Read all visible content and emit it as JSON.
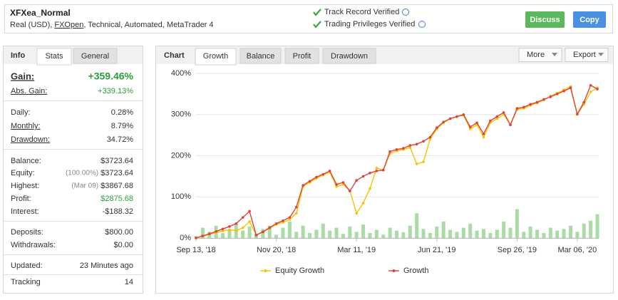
{
  "header": {
    "title": "XFXea_Normal",
    "subtitle": [
      "Real (USD), ",
      "FXOpen",
      ", Technical, Automated, MetaTrader 4"
    ],
    "verified": [
      "Track Record Verified",
      "Trading Privileges Verified"
    ],
    "buttons": [
      "Discuss",
      "Copy"
    ]
  },
  "info_panel": {
    "heading": "Info",
    "tabs": [
      "Stats",
      "General"
    ],
    "groups": [
      [
        {
          "label": "Gain:",
          "value": "+359.46%"
        },
        {
          "label": "Abs. Gain:",
          "value": "+339.13%"
        }
      ],
      [
        {
          "label": "Daily:",
          "value": "0.28%"
        },
        {
          "label": "Monthly:",
          "value": "8.79%"
        },
        {
          "label": "Drawdown:",
          "value": "34.72%"
        }
      ],
      [
        {
          "label": "Balance:",
          "value": "$3723.64"
        },
        {
          "label": "Equity:",
          "note": "(100.00%)",
          "value": "$3723.64"
        },
        {
          "label": "Highest:",
          "note": "(Mar 09)",
          "value": "$3867.68"
        },
        {
          "label": "Profit:",
          "value": "$2875.68"
        },
        {
          "label": "Interest:",
          "value": "-$188.32"
        }
      ],
      [
        {
          "label": "Deposits:",
          "value": "$800.00"
        },
        {
          "label": "Withdrawals:",
          "value": "$0.00"
        }
      ],
      [
        {
          "label": "Updated:",
          "value": "23 Minutes ago"
        }
      ],
      [
        {
          "label": "Tracking",
          "value": "14"
        }
      ]
    ]
  },
  "chart_panel": {
    "heading": "Chart",
    "tabs": [
      "Growth",
      "Balance",
      "Profit",
      "Drawdown"
    ],
    "menus": [
      "More",
      "Export"
    ]
  },
  "chart_data": {
    "type": "line",
    "categories": [
      "Sep 13, '18",
      null,
      null,
      null,
      null,
      null,
      null,
      null,
      null,
      null,
      null,
      null,
      "Nov 20, '18",
      null,
      null,
      null,
      null,
      null,
      null,
      null,
      null,
      null,
      null,
      null,
      "Mar 11, '19",
      null,
      null,
      null,
      null,
      null,
      null,
      null,
      null,
      null,
      null,
      null,
      "Jun 21, '19",
      null,
      null,
      null,
      null,
      null,
      null,
      null,
      null,
      null,
      null,
      null,
      "Sep 26, '19",
      null,
      null,
      null,
      null,
      null,
      null,
      null,
      null,
      "Mar 06, '20",
      null,
      null,
      null
    ],
    "series": [
      {
        "name": "Equity Growth",
        "color": "#f5c400",
        "values": [
          0,
          4,
          9,
          13,
          17,
          20,
          18,
          25,
          40,
          8,
          14,
          24,
          33,
          38,
          45,
          60,
          125,
          135,
          145,
          153,
          160,
          125,
          130,
          115,
          60,
          85,
          120,
          170,
          165,
          205,
          212,
          215,
          220,
          180,
          185,
          240,
          265,
          280,
          290,
          295,
          298,
          265,
          275,
          245,
          280,
          290,
          300,
          275,
          312,
          315,
          322,
          328,
          335,
          345,
          352,
          360,
          368,
          300,
          325,
          355,
          365
        ]
      },
      {
        "name": "Growth",
        "color": "#e0413a",
        "values": [
          0,
          5,
          10,
          16,
          22,
          28,
          35,
          50,
          65,
          7,
          15,
          25,
          35,
          42,
          50,
          75,
          128,
          138,
          148,
          155,
          163,
          130,
          135,
          114,
          140,
          150,
          158,
          163,
          165,
          210,
          215,
          218,
          225,
          228,
          235,
          245,
          268,
          282,
          290,
          295,
          300,
          270,
          280,
          253,
          285,
          295,
          305,
          275,
          315,
          318,
          325,
          330,
          337,
          343,
          350,
          357,
          365,
          301,
          330,
          371,
          362
        ]
      }
    ],
    "bar_series": {
      "color": "#a9dca4",
      "values": [
        5,
        25,
        15,
        30,
        12,
        20,
        35,
        18,
        28,
        10,
        22,
        30,
        8,
        25,
        40,
        15,
        30,
        12,
        20,
        35,
        18,
        25,
        10,
        28,
        15,
        33,
        12,
        20,
        8,
        25,
        18,
        14,
        30,
        60,
        22,
        12,
        28,
        40,
        20,
        15,
        25,
        35,
        18,
        22,
        12,
        20,
        40,
        25,
        70,
        15,
        28,
        20,
        12,
        25,
        18,
        22,
        30,
        15,
        35,
        42,
        58
      ]
    },
    "ylim": [
      0,
      400
    ],
    "yticks": [
      {
        "value": 0,
        "label": "0%"
      },
      {
        "value": 100,
        "label": "100%"
      },
      {
        "value": 200,
        "label": "200%"
      },
      {
        "value": 300,
        "label": "300%"
      },
      {
        "value": 400,
        "label": "400%"
      }
    ],
    "grid": true
  }
}
